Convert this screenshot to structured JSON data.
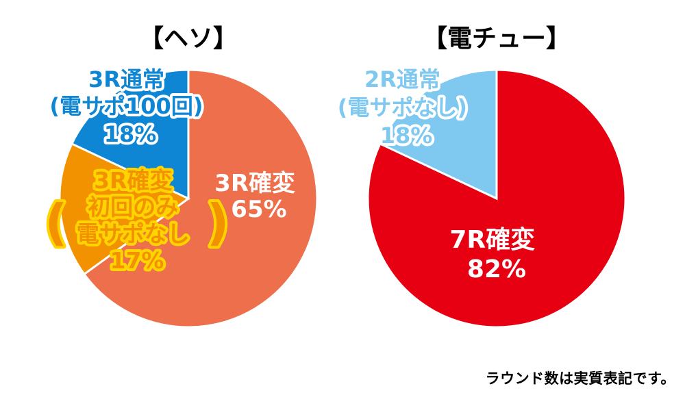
{
  "chart_data": [
    {
      "type": "pie",
      "title": "【ヘソ】",
      "start_angle_deg": 0,
      "direction": "clockwise",
      "slices": [
        {
          "lines": [
            "3R確変",
            "65%"
          ],
          "value": 65,
          "color": "#ee6f4b"
        },
        {
          "lines": [
            "3R確変",
            "初回のみ",
            "電サポなし",
            "17%"
          ],
          "bracket_text": [
            "(",
            ")"
          ],
          "value": 17,
          "color": "#f39200"
        },
        {
          "lines": [
            "3R通常",
            "(電サポ100回)",
            "18%"
          ],
          "value": 18,
          "color": "#0e86d4"
        }
      ]
    },
    {
      "type": "pie",
      "title": "【電チュー】",
      "start_angle_deg": 0,
      "direction": "clockwise",
      "slices": [
        {
          "lines": [
            "7R確変",
            "82%"
          ],
          "value": 82,
          "color": "#e60012"
        },
        {
          "lines": [
            "2R通常",
            "(電サポなし)",
            "18%"
          ],
          "value": 18,
          "color": "#7fc8f0"
        }
      ]
    }
  ],
  "footnote": "ラウンド数は実質表記です。"
}
